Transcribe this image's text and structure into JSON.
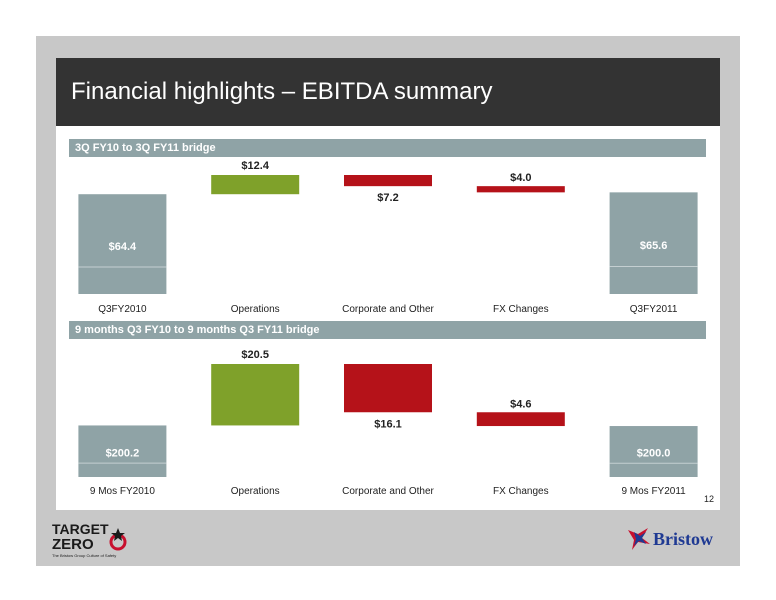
{
  "page": {
    "title": "Financial highlights – EBITDA summary",
    "page_number": "12",
    "logo_left": {
      "line1": "TARGET",
      "line2": "ZERO",
      "tagline": "The Bristow Group Culture of Safety"
    },
    "logo_right": {
      "text": "Bristow"
    }
  },
  "colors": {
    "total": "#8fa3a6",
    "increase": "#7fa12a",
    "decrease": "#b51219",
    "title_bar": "#333333"
  },
  "chart_data": [
    {
      "type": "bar",
      "subtype": "waterfall",
      "title": "3Q FY10 to 3Q FY11 bridge",
      "categories": [
        "Q3FY2010",
        "Operations",
        "Corporate and Other",
        "FX Changes",
        "Q3FY2011"
      ],
      "values": [
        64.4,
        12.4,
        -7.2,
        -4.0,
        65.6
      ],
      "kinds": [
        "total",
        "increase",
        "decrease",
        "decrease",
        "total"
      ],
      "labels": [
        "$64.4",
        "$12.4",
        "$7.2",
        "$4.0",
        "$65.6"
      ]
    },
    {
      "type": "bar",
      "subtype": "waterfall",
      "title": "9 months Q3 FY10 to 9 months Q3 FY11 bridge",
      "categories": [
        "9 Mos FY2010",
        "Operations",
        "Corporate and Other",
        "FX Changes",
        "9 Mos FY2011"
      ],
      "values": [
        200.2,
        20.5,
        -16.1,
        -4.6,
        200.0
      ],
      "kinds": [
        "total",
        "increase",
        "decrease",
        "decrease",
        "total"
      ],
      "labels": [
        "$200.2",
        "$20.5",
        "$16.1",
        "$4.6",
        "$200.0"
      ]
    }
  ]
}
